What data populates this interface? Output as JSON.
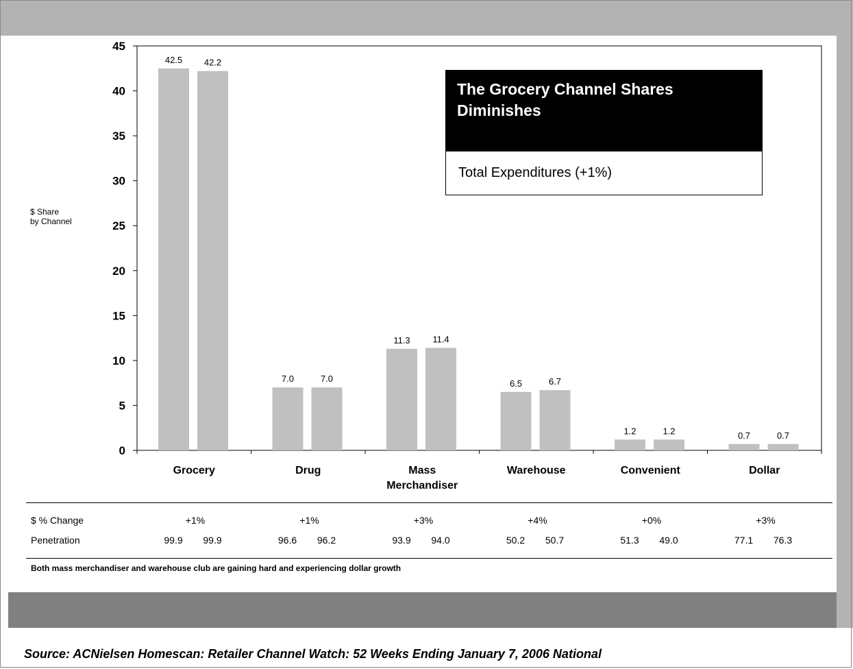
{
  "chart_data": {
    "type": "bar",
    "ylabel": "$ Share\nby Channel",
    "ylim": [
      0,
      45
    ],
    "yticks": [
      0,
      5,
      10,
      15,
      20,
      25,
      30,
      35,
      40,
      45
    ],
    "categories": [
      "Grocery",
      "Drug",
      "Mass\nMerchandiser",
      "Warehouse",
      "Convenient",
      "Dollar"
    ],
    "series": [
      {
        "values": [
          42.5,
          7.0,
          11.3,
          6.5,
          1.2,
          0.7
        ]
      },
      {
        "values": [
          42.2,
          7.0,
          11.4,
          6.7,
          1.2,
          0.7
        ]
      }
    ],
    "bar_color": "#c0c0c0",
    "grid": false
  },
  "callout": {
    "title": "The Grocery Channel Shares Diminishes",
    "subtitle": "Total Expenditures (+1%)"
  },
  "table": {
    "rows": [
      {
        "label": "$ % Change",
        "values": [
          "+1%",
          "+1%",
          "+3%",
          "+4%",
          "+0%",
          "+3%"
        ]
      },
      {
        "label": "Penetration",
        "pairs": [
          [
            "99.9",
            "99.9"
          ],
          [
            "96.6",
            "96.2"
          ],
          [
            "93.9",
            "94.0"
          ],
          [
            "50.2",
            "50.7"
          ],
          [
            "51.3",
            "49.0"
          ],
          [
            "77.1",
            "76.3"
          ]
        ]
      }
    ]
  },
  "footnote": "Both mass merchandiser and warehouse club are gaining hard and experiencing dollar growth",
  "source": "Source: ACNielsen Homescan: Retailer Channel Watch: 52 Weeks Ending January 7, 2006  National"
}
